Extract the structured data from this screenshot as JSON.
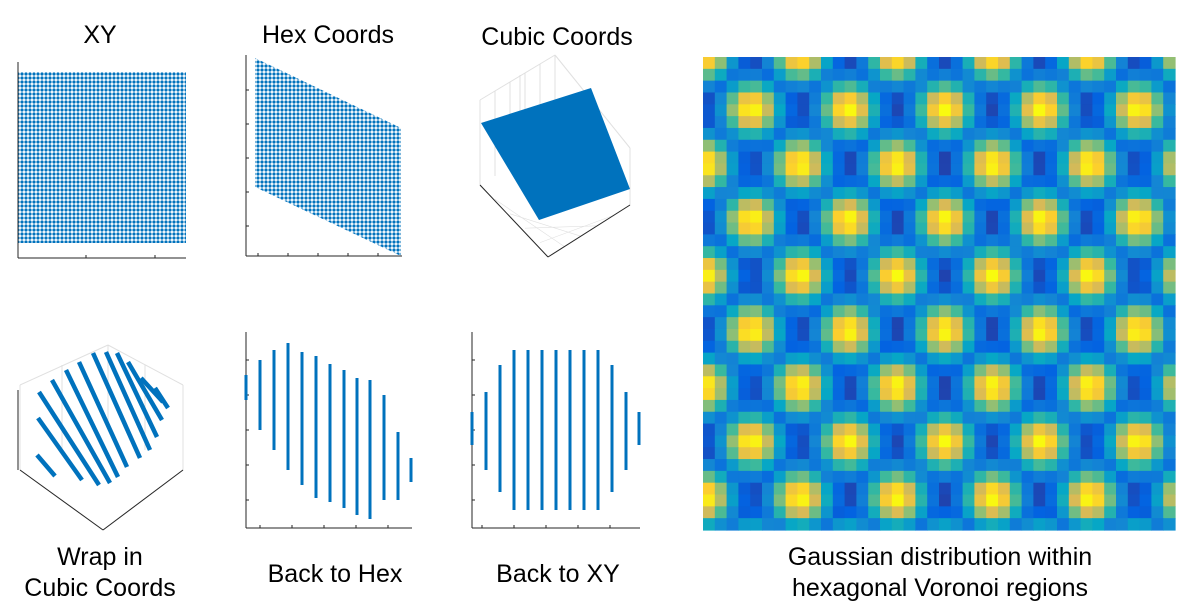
{
  "labels": {
    "xy": "XY",
    "hex": "Hex Coords",
    "cubic": "Cubic Coords",
    "wrap_line1": "Wrap in",
    "wrap_line2": "Cubic Coords",
    "back_hex": "Back to Hex",
    "back_xy": "Back to  XY",
    "heatmap_line1": "Gaussian distribution within",
    "heatmap_line2": "hexagonal Voronoi regions"
  },
  "colors": {
    "series": "#0072BD",
    "axis": "#262626",
    "grid": "#e0e0e0"
  },
  "chart_data": [
    {
      "type": "scatter",
      "title": "XY",
      "grid": false
    },
    {
      "type": "scatter",
      "title": "Hex Coords",
      "grid": false
    },
    {
      "type": "scatter",
      "title": "Cubic Coords",
      "grid": true
    },
    {
      "type": "scatter",
      "title": "Wrap in Cubic Coords",
      "grid": true
    },
    {
      "type": "scatter",
      "title": "Back to Hex",
      "grid": false
    },
    {
      "type": "scatter",
      "title": "Back to  XY",
      "grid": false
    },
    {
      "type": "heatmap",
      "title": "Gaussian distribution within hexagonal Voronoi regions",
      "colormap": "parula"
    }
  ]
}
